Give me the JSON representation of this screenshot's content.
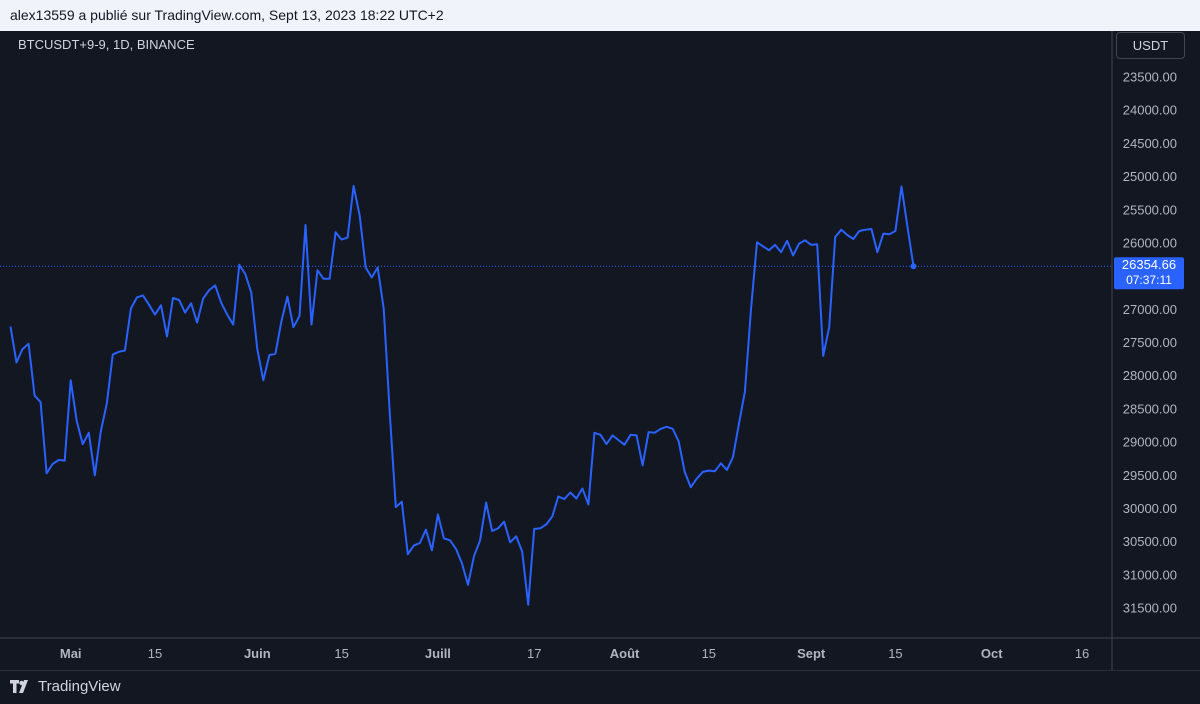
{
  "header": {
    "publisher_line": "alex13559 a publié sur TradingView.com, Sept 13, 2023 18:22 UTC+2"
  },
  "chart_header": {
    "symbol": "BTCUSDT+9-9, 1D, BINANCE",
    "currency_button": "USDT"
  },
  "price_label": {
    "price": "26354.66",
    "countdown": "07:37:11"
  },
  "footer": {
    "brand": "TradingView",
    "logo_icon": "tradingview-logo-icon"
  },
  "colors": {
    "background": "#131722",
    "line": "#2962ff",
    "axis_text": "#b2b5be",
    "header_bg": "#f0f3fa"
  },
  "chart_data": {
    "type": "line",
    "title": "",
    "xlabel": "",
    "ylabel": "",
    "y_axis_inverted": true,
    "ylim": [
      31900,
      23300
    ],
    "y_ticks": [
      "23500.00",
      "24000.00",
      "24500.00",
      "25000.00",
      "25500.00",
      "26000.00",
      "26500.00",
      "27000.00",
      "27500.00",
      "28000.00",
      "28500.00",
      "29000.00",
      "29500.00",
      "30000.00",
      "30500.00",
      "31000.00",
      "31500.00"
    ],
    "x_ticks": [
      {
        "day": 10,
        "label": "Mai",
        "bold": true
      },
      {
        "day": 24,
        "label": "15",
        "bold": false
      },
      {
        "day": 41,
        "label": "Juin",
        "bold": true
      },
      {
        "day": 55,
        "label": "15",
        "bold": false
      },
      {
        "day": 71,
        "label": "Juill",
        "bold": true
      },
      {
        "day": 87,
        "label": "17",
        "bold": false
      },
      {
        "day": 102,
        "label": "Août",
        "bold": true
      },
      {
        "day": 116,
        "label": "15",
        "bold": false
      },
      {
        "day": 133,
        "label": "Sept",
        "bold": true
      },
      {
        "day": 147,
        "label": "15",
        "bold": false
      },
      {
        "day": 163,
        "label": "Oct",
        "bold": true
      },
      {
        "day": 178,
        "label": "16",
        "bold": false
      }
    ],
    "series": [
      {
        "values": [
          27260,
          27800,
          27600,
          27520,
          28300,
          28400,
          29470,
          29330,
          29270,
          29280,
          28070,
          28680,
          29030,
          28860,
          29500,
          28840,
          28420,
          27680,
          27640,
          27620,
          26990,
          26820,
          26790,
          26930,
          27080,
          26940,
          27410,
          26830,
          26860,
          27050,
          26910,
          27200,
          26840,
          26710,
          26640,
          26900,
          27080,
          27230,
          26330,
          26470,
          26750,
          27600,
          28070,
          27690,
          27670,
          27180,
          26810,
          27270,
          27100,
          25730,
          27230,
          26410,
          26540,
          26540,
          25840,
          25950,
          25920,
          25140,
          25590,
          26370,
          26520,
          26370,
          26990,
          28570,
          29980,
          29900,
          30690,
          30560,
          30520,
          30320,
          30630,
          30090,
          30450,
          30480,
          30610,
          30830,
          31150,
          30720,
          30480,
          29910,
          30340,
          30300,
          30200,
          30510,
          30420,
          30650,
          31450,
          30310,
          30300,
          30240,
          30120,
          29820,
          29860,
          29760,
          29850,
          29700,
          29940,
          28860,
          28890,
          29030,
          28900,
          28970,
          29040,
          28890,
          28900,
          29350,
          28850,
          28860,
          28800,
          28770,
          28800,
          28990,
          29450,
          29680,
          29550,
          29450,
          29430,
          29440,
          29320,
          29420,
          29230,
          28730,
          28240,
          27000,
          25990,
          26050,
          26110,
          26030,
          26140,
          25970,
          26190,
          26010,
          25960,
          26030,
          26020,
          27700,
          27270,
          25910,
          25800,
          25880,
          25940,
          25820,
          25800,
          25790,
          26140,
          25860,
          25870,
          25820,
          25150,
          25760,
          26350
        ]
      }
    ]
  }
}
